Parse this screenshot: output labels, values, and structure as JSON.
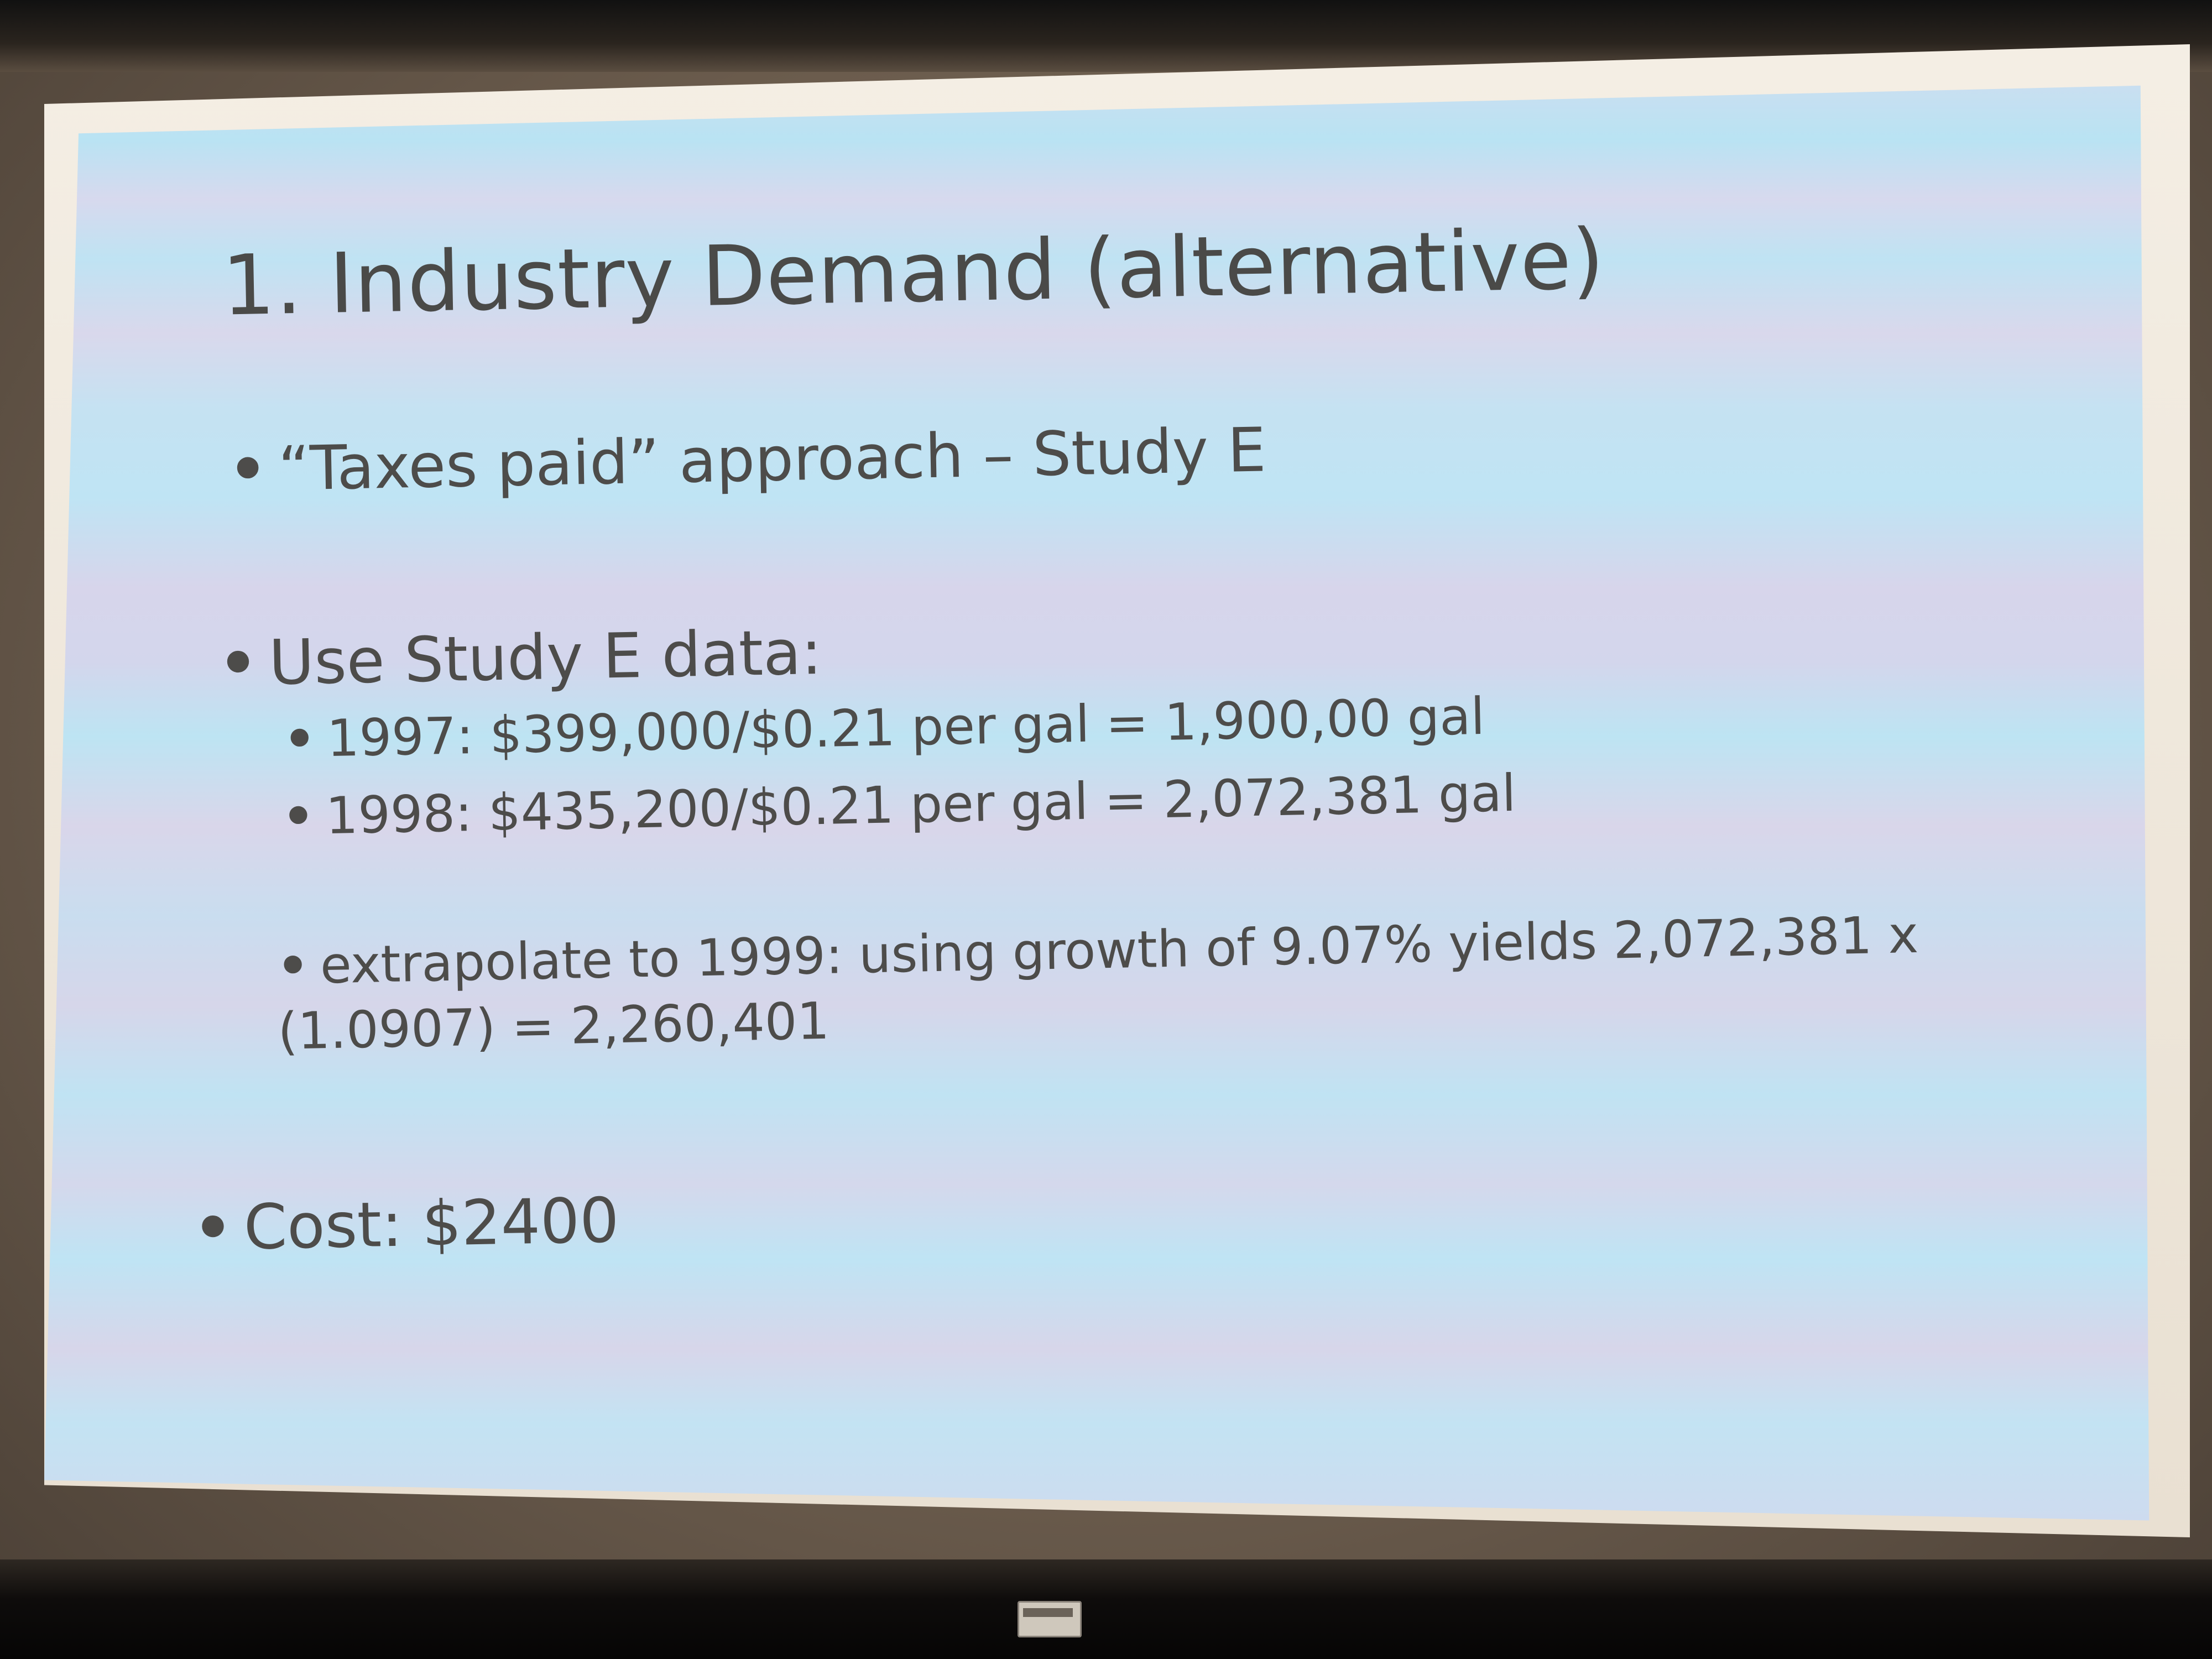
{
  "slide": {
    "title": "1. Industry Demand (alternative)",
    "bullet_char": "•",
    "bullets": [
      {
        "text": "“Taxes paid” approach – Study E"
      },
      {
        "text": "Use Study E data:"
      },
      {
        "text": "1997: $399,000/$0.21 per gal = 1,900,00 gal"
      },
      {
        "text": "1998: $435,200/$0.21 per gal = 2,072,381 gal"
      },
      {
        "text": "extrapolate to 1999: using growth of 9.07% yields 2,072,381 x (1.0907) = 2,260,401"
      },
      {
        "text": "Cost:  $2400"
      }
    ]
  }
}
